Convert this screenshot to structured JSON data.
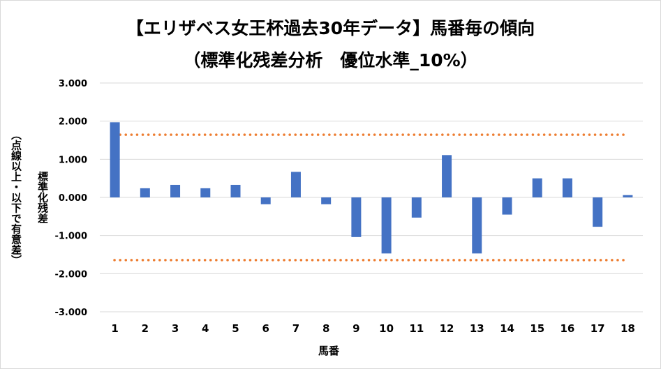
{
  "chart_data": {
    "type": "bar",
    "title": "【エリザベス女王杯過去30年データ】馬番毎の傾向",
    "subtitle": "（標準化残差分析　優位水準_10%）",
    "xlabel": "馬番",
    "ylabel": "標準化残差",
    "ylabel2": "（点線以上・以下で有意差）",
    "categories": [
      "1",
      "2",
      "3",
      "4",
      "5",
      "6",
      "7",
      "8",
      "9",
      "10",
      "11",
      "12",
      "13",
      "14",
      "15",
      "16",
      "17",
      "18"
    ],
    "series": [
      {
        "values": [
          1.97,
          0.24,
          0.33,
          0.24,
          0.33,
          -0.18,
          0.67,
          -0.18,
          -1.04,
          -1.47,
          -0.53,
          1.11,
          -1.47,
          -0.45,
          0.5,
          0.5,
          -0.77,
          0.06
        ],
        "color": "#4472c4"
      }
    ],
    "threshold_lines": [
      1.645,
      -1.645
    ],
    "threshold_color": "#ed7d31",
    "ylim": [
      -3,
      3
    ],
    "y_ticks": [
      "3.000",
      "2.000",
      "1.000",
      "0.000",
      "-1.000",
      "-2.000",
      "-3.000"
    ],
    "grid": "horizontal",
    "legend": "none"
  }
}
